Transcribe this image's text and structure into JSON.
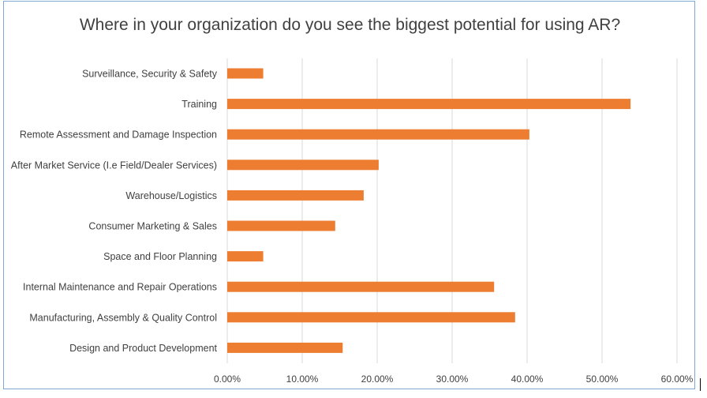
{
  "chart_data": {
    "type": "bar",
    "orientation": "horizontal",
    "title": "Where in your organization do you see the biggest potential for using AR?",
    "categories": [
      "Surveillance, Security & Safety",
      "Training",
      "Remote Assessment and Damage Inspection",
      "After Market Service (I.e Field/Dealer Services)",
      "Warehouse/Logistics",
      "Consumer Marketing & Sales",
      "Space and Floor Planning",
      "Internal Maintenance and Repair Operations",
      "Manufacturing, Assembly & Quality Control",
      "Design and Product Development"
    ],
    "values": [
      4.8,
      53.8,
      40.3,
      20.2,
      18.2,
      14.4,
      4.8,
      35.6,
      38.4,
      15.4
    ],
    "xlim": [
      0,
      60
    ],
    "xticks": [
      "0.00%",
      "10.00%",
      "20.00%",
      "30.00%",
      "40.00%",
      "50.00%",
      "60.00%"
    ],
    "grid": "vertical",
    "bar_color": "#ed7d31",
    "legend": "none"
  }
}
